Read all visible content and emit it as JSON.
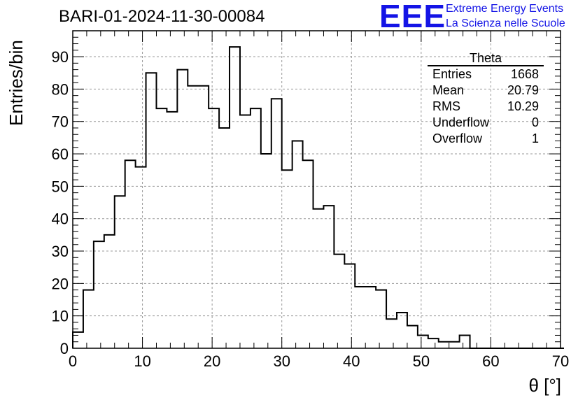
{
  "header": {
    "title": "BARI-01-2024-11-30-00084",
    "logo_text": "EEE",
    "logo_line1": "Extreme Energy Events",
    "logo_line2": "La Scienza nelle Scuole"
  },
  "stats": {
    "title": "Theta",
    "rows": [
      {
        "label": "Entries",
        "value": "1668"
      },
      {
        "label": "Mean",
        "value": "20.79"
      },
      {
        "label": "RMS",
        "value": "10.29"
      },
      {
        "label": "Underflow",
        "value": "0"
      },
      {
        "label": "Overflow",
        "value": "1"
      }
    ]
  },
  "chart_data": {
    "type": "bar",
    "style": "step-histogram",
    "xlabel": "θ [°]",
    "ylabel": "Entries/bin",
    "xlim": [
      0,
      70
    ],
    "ylim": [
      0,
      98
    ],
    "grid": true,
    "bin_width": 1.5,
    "x_ticks": [
      0,
      10,
      20,
      30,
      40,
      50,
      60,
      70
    ],
    "y_ticks": [
      0,
      10,
      20,
      30,
      40,
      50,
      60,
      70,
      80,
      90
    ],
    "values": [
      5,
      18,
      33,
      35,
      47,
      58,
      56,
      85,
      74,
      73,
      86,
      81,
      81,
      74,
      68,
      93,
      72,
      74,
      60,
      77,
      55,
      64,
      58,
      43,
      44,
      29,
      26,
      19,
      19,
      18,
      9,
      11,
      7,
      4,
      3,
      2,
      2,
      4,
      0,
      0,
      0,
      0,
      0,
      0,
      0,
      0,
      0
    ]
  }
}
